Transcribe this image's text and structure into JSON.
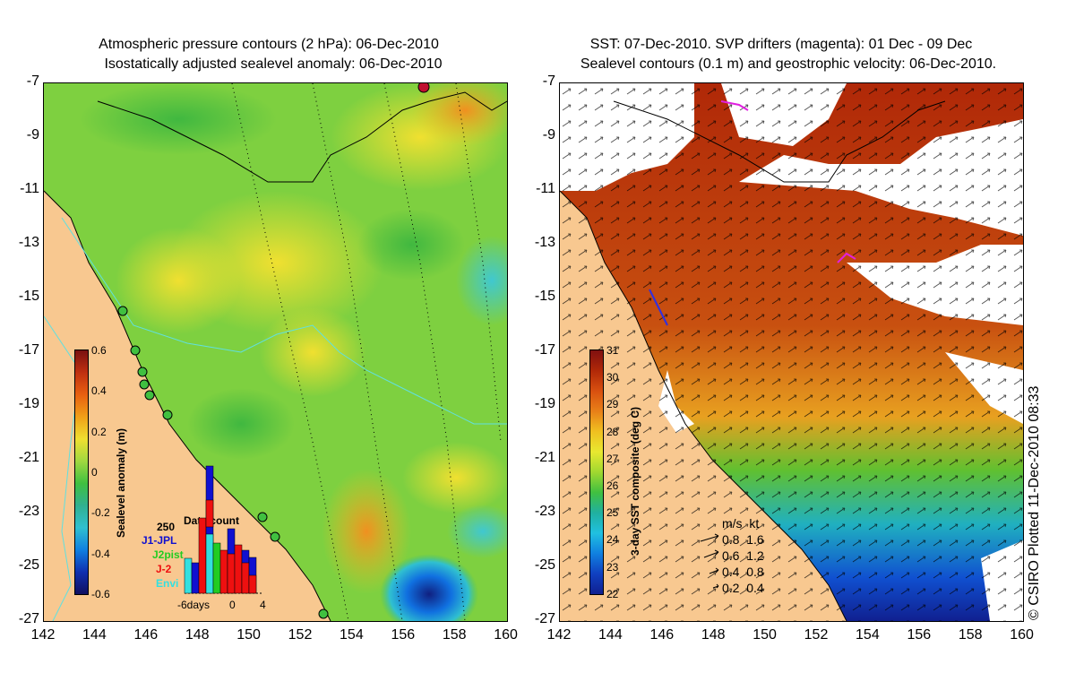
{
  "left_panel": {
    "title_line1": "Atmospheric pressure contours (2 hPa): 06-Dec-2010",
    "title_line2": "Isostatically adjusted sealevel anomaly: 06-Dec-2010",
    "colorbar_label": "Sealevel anomaly (m)",
    "colorbar_ticks": [
      "0.6",
      "0.4",
      "0.2",
      "0",
      "-0.2",
      "-0.4",
      "-0.6"
    ],
    "datacount_title": "Data count",
    "datacount_max": "250",
    "sats": [
      {
        "name": "J1-JPL",
        "color": "#1010d0"
      },
      {
        "name": "J2pist",
        "color": "#22cc22"
      },
      {
        "name": "J-2",
        "color": "#ee1010"
      },
      {
        "name": "Envi",
        "color": "#33e0e0"
      }
    ],
    "datacount_xticks": [
      "-6days",
      "0",
      "4"
    ]
  },
  "right_panel": {
    "title_line1": "SST: 07-Dec-2010. SVP drifters (magenta): 01 Dec - 09 Dec",
    "title_line2": "Sealevel contours (0.1 m) and geostrophic velocity: 06-Dec-2010.",
    "colorbar_label": "3-day SST composite (deg C)",
    "colorbar_ticks": [
      "31",
      "30",
      "29",
      "28",
      "27",
      "26",
      "25",
      "24",
      "23",
      "22"
    ],
    "speed_header": "m/s  kt",
    "speed_rows": [
      "0.8  1.6",
      "0.6  1.2",
      "0.4  0.8",
      "0.2  0.4"
    ]
  },
  "y_ticks": [
    "-7",
    "-9",
    "-11",
    "-13",
    "-15",
    "-17",
    "-19",
    "-21",
    "-23",
    "-25",
    "-27"
  ],
  "x_ticks": [
    "142",
    "144",
    "146",
    "148",
    "150",
    "152",
    "154",
    "156",
    "158",
    "160"
  ],
  "copyright": "© CSIRO Plotted 11-Dec-2010 08:33",
  "colors": {
    "land": "#f8c890",
    "ocean_green": "#7ed040",
    "sst_warm": "#c04808"
  }
}
